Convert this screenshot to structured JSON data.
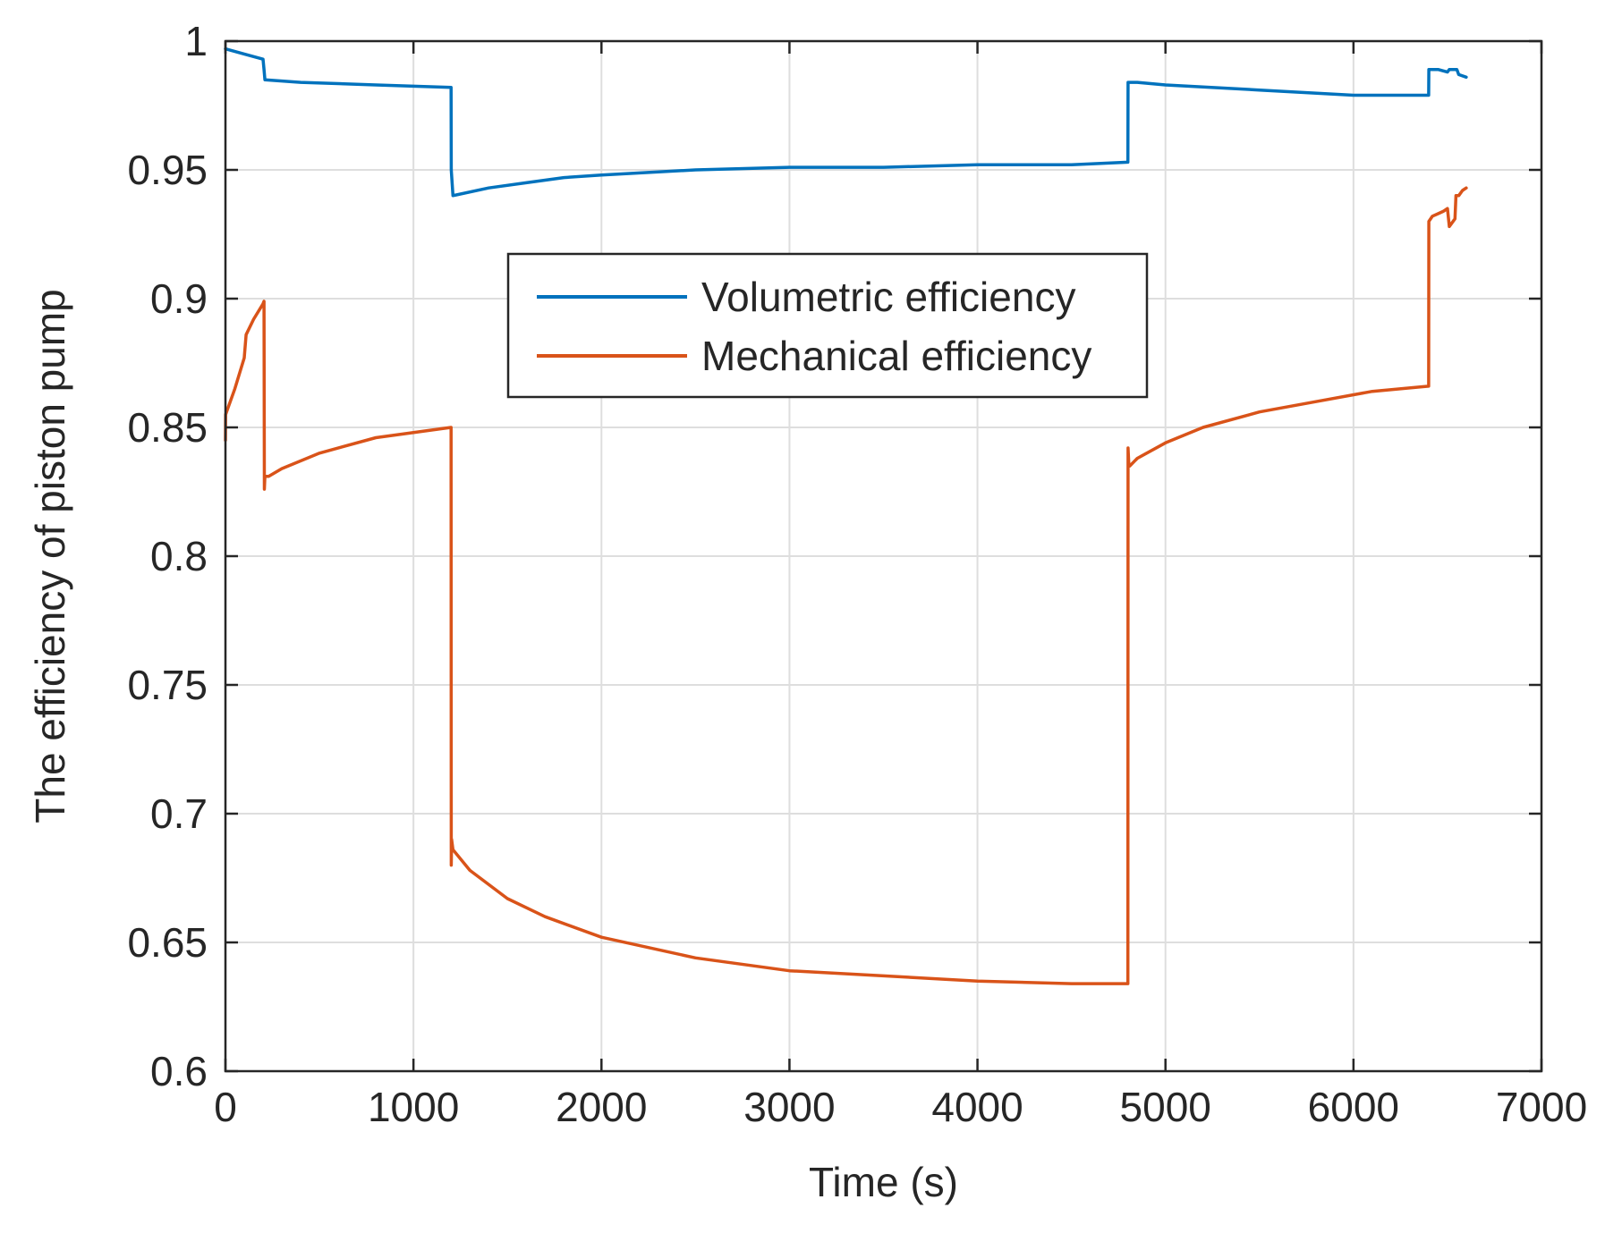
{
  "chart_data": {
    "type": "line",
    "title": "",
    "xlabel": "Time (s)",
    "ylabel": "The efficiency of piston pump",
    "xlim": [
      0,
      7000
    ],
    "ylim": [
      0.6,
      1
    ],
    "xticks": [
      0,
      1000,
      2000,
      3000,
      4000,
      5000,
      6000,
      7000
    ],
    "xtick_labels": [
      "0",
      "1000",
      "2000",
      "3000",
      "4000",
      "5000",
      "6000",
      "7000"
    ],
    "yticks": [
      0.6,
      0.65,
      0.7,
      0.75,
      0.8,
      0.85,
      0.9,
      0.95,
      1
    ],
    "ytick_labels": [
      "0.6",
      "0.65",
      "0.7",
      "0.75",
      "0.8",
      "0.85",
      "0.9",
      "0.95",
      "1"
    ],
    "grid": true,
    "legend_position": "upper-center",
    "series": [
      {
        "name": "Volumetric efficiency",
        "color": "#0072BD",
        "x": [
          0,
          100,
          200,
          205,
          210,
          400,
          800,
          1200,
          1201,
          1210,
          1400,
          1600,
          1800,
          2000,
          2500,
          3000,
          3500,
          4000,
          4500,
          4800,
          4801,
          4850,
          5000,
          5500,
          6000,
          6400,
          6401,
          6450,
          6500,
          6510,
          6550,
          6560,
          6600
        ],
        "values": [
          0.997,
          0.995,
          0.993,
          0.989,
          0.985,
          0.984,
          0.983,
          0.982,
          0.95,
          0.94,
          0.943,
          0.945,
          0.947,
          0.948,
          0.95,
          0.951,
          0.951,
          0.952,
          0.952,
          0.953,
          0.984,
          0.984,
          0.983,
          0.981,
          0.979,
          0.979,
          0.989,
          0.989,
          0.988,
          0.989,
          0.989,
          0.987,
          0.986
        ]
      },
      {
        "name": "Mechanical efficiency",
        "color": "#D95319",
        "x": [
          0,
          1,
          50,
          100,
          110,
          150,
          200,
          205,
          207,
          210,
          230,
          300,
          500,
          800,
          1100,
          1200,
          1201,
          1203,
          1210,
          1300,
          1500,
          1700,
          2000,
          2500,
          3000,
          3500,
          4000,
          4500,
          4800,
          4801,
          4805,
          4810,
          4850,
          5000,
          5200,
          5500,
          5800,
          6100,
          6400,
          6401,
          6420,
          6450,
          6480,
          6500,
          6510,
          6540,
          6545,
          6560,
          6580,
          6600
        ],
        "values": [
          0.845,
          0.855,
          0.865,
          0.877,
          0.886,
          0.892,
          0.898,
          0.899,
          0.826,
          0.831,
          0.831,
          0.834,
          0.84,
          0.846,
          0.849,
          0.85,
          0.68,
          0.69,
          0.686,
          0.678,
          0.667,
          0.66,
          0.652,
          0.644,
          0.639,
          0.637,
          0.635,
          0.634,
          0.634,
          0.842,
          0.836,
          0.835,
          0.838,
          0.844,
          0.85,
          0.856,
          0.86,
          0.864,
          0.866,
          0.93,
          0.932,
          0.933,
          0.934,
          0.935,
          0.928,
          0.931,
          0.94,
          0.94,
          0.942,
          0.943
        ]
      }
    ]
  }
}
